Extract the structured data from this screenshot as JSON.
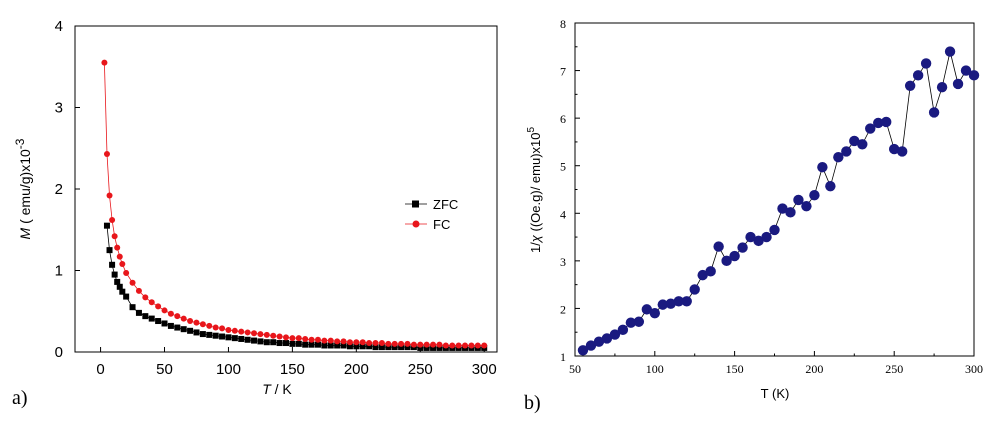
{
  "figure": {
    "panel_a_label": "a)",
    "panel_b_label": "b)"
  },
  "chart_data": [
    {
      "id": "a",
      "type": "scatter",
      "xlabel_italic": "T",
      "xlabel_rest": " / K",
      "ylabel_italic": "M",
      "ylabel_rest": " ( emu/g)x10",
      "ylabel_sup": "-3",
      "xlim": [
        -20,
        310
      ],
      "ylim": [
        0,
        4
      ],
      "xticks": [
        0,
        50,
        100,
        150,
        200,
        250,
        300
      ],
      "yticks": [
        0,
        1,
        2,
        3,
        4
      ],
      "legend": {
        "position": "center-right"
      },
      "series": [
        {
          "name": "ZFC",
          "color": "#000000",
          "marker": "square",
          "x": [
            5,
            7,
            9,
            11,
            13,
            15,
            17,
            20,
            25,
            30,
            35,
            40,
            45,
            50,
            55,
            60,
            65,
            70,
            75,
            80,
            85,
            90,
            95,
            100,
            105,
            110,
            115,
            120,
            125,
            130,
            135,
            140,
            145,
            150,
            155,
            160,
            165,
            170,
            175,
            180,
            185,
            190,
            195,
            200,
            205,
            210,
            215,
            220,
            225,
            230,
            235,
            240,
            245,
            250,
            255,
            260,
            265,
            270,
            275,
            280,
            285,
            290,
            295,
            300
          ],
          "y": [
            1.55,
            1.25,
            1.07,
            0.95,
            0.86,
            0.8,
            0.74,
            0.68,
            0.55,
            0.48,
            0.44,
            0.41,
            0.38,
            0.35,
            0.32,
            0.3,
            0.28,
            0.26,
            0.24,
            0.22,
            0.21,
            0.2,
            0.19,
            0.18,
            0.17,
            0.16,
            0.15,
            0.14,
            0.13,
            0.12,
            0.12,
            0.11,
            0.11,
            0.1,
            0.1,
            0.09,
            0.09,
            0.09,
            0.08,
            0.08,
            0.08,
            0.08,
            0.07,
            0.07,
            0.07,
            0.07,
            0.06,
            0.06,
            0.06,
            0.06,
            0.06,
            0.06,
            0.06,
            0.05,
            0.05,
            0.05,
            0.05,
            0.05,
            0.05,
            0.05,
            0.05,
            0.05,
            0.05,
            0.05
          ]
        },
        {
          "name": "FC",
          "color": "#e8161b",
          "marker": "circle",
          "x": [
            3,
            5,
            7,
            9,
            11,
            13,
            15,
            17,
            20,
            25,
            30,
            35,
            40,
            45,
            50,
            55,
            60,
            65,
            70,
            75,
            80,
            85,
            90,
            95,
            100,
            105,
            110,
            115,
            120,
            125,
            130,
            135,
            140,
            145,
            150,
            155,
            160,
            165,
            170,
            175,
            180,
            185,
            190,
            195,
            200,
            205,
            210,
            215,
            220,
            225,
            230,
            235,
            240,
            245,
            250,
            255,
            260,
            265,
            270,
            275,
            280,
            285,
            290,
            295,
            300
          ],
          "y": [
            3.55,
            2.43,
            1.92,
            1.62,
            1.42,
            1.28,
            1.17,
            1.08,
            0.97,
            0.85,
            0.75,
            0.67,
            0.61,
            0.56,
            0.51,
            0.47,
            0.44,
            0.41,
            0.38,
            0.36,
            0.34,
            0.32,
            0.3,
            0.29,
            0.27,
            0.26,
            0.25,
            0.24,
            0.23,
            0.22,
            0.21,
            0.2,
            0.19,
            0.18,
            0.17,
            0.17,
            0.16,
            0.15,
            0.15,
            0.14,
            0.14,
            0.13,
            0.13,
            0.12,
            0.12,
            0.12,
            0.11,
            0.11,
            0.11,
            0.1,
            0.1,
            0.1,
            0.1,
            0.09,
            0.09,
            0.09,
            0.09,
            0.09,
            0.08,
            0.08,
            0.08,
            0.08,
            0.08,
            0.08,
            0.08
          ]
        }
      ]
    },
    {
      "id": "b",
      "type": "line",
      "xlabel": "T (K)",
      "ylabel_prefix": "1/",
      "ylabel_chi": "χ",
      "ylabel_rest": " ((Oe.g)/ emu)x10",
      "ylabel_sup": "5",
      "xlim": [
        50,
        300
      ],
      "ylim": [
        1,
        8
      ],
      "xticks": [
        50,
        100,
        150,
        200,
        250,
        300
      ],
      "yticks": [
        1,
        2,
        3,
        4,
        5,
        6,
        7,
        8
      ],
      "series": [
        {
          "name": "1/chi",
          "color": "#1a1a80",
          "marker": "circle",
          "x": [
            55,
            60,
            65,
            70,
            75,
            80,
            85,
            90,
            95,
            100,
            105,
            110,
            115,
            120,
            125,
            130,
            135,
            140,
            145,
            150,
            155,
            160,
            165,
            170,
            175,
            180,
            185,
            190,
            195,
            200,
            205,
            210,
            215,
            220,
            225,
            230,
            235,
            240,
            245,
            250,
            255,
            260,
            265,
            270,
            275,
            280,
            285,
            290,
            295,
            300
          ],
          "y": [
            1.12,
            1.22,
            1.3,
            1.37,
            1.45,
            1.55,
            1.7,
            1.72,
            1.98,
            1.9,
            2.08,
            2.1,
            2.15,
            2.15,
            2.4,
            2.7,
            2.78,
            3.3,
            3.0,
            3.1,
            3.28,
            3.5,
            3.42,
            3.5,
            3.65,
            4.1,
            4.02,
            4.28,
            4.15,
            4.38,
            4.97,
            4.57,
            5.18,
            5.3,
            5.52,
            5.45,
            5.78,
            5.9,
            5.92,
            5.35,
            5.3,
            6.68,
            6.9,
            7.15,
            6.12,
            6.65,
            7.4,
            6.72,
            7.0,
            6.9
          ]
        }
      ]
    }
  ]
}
